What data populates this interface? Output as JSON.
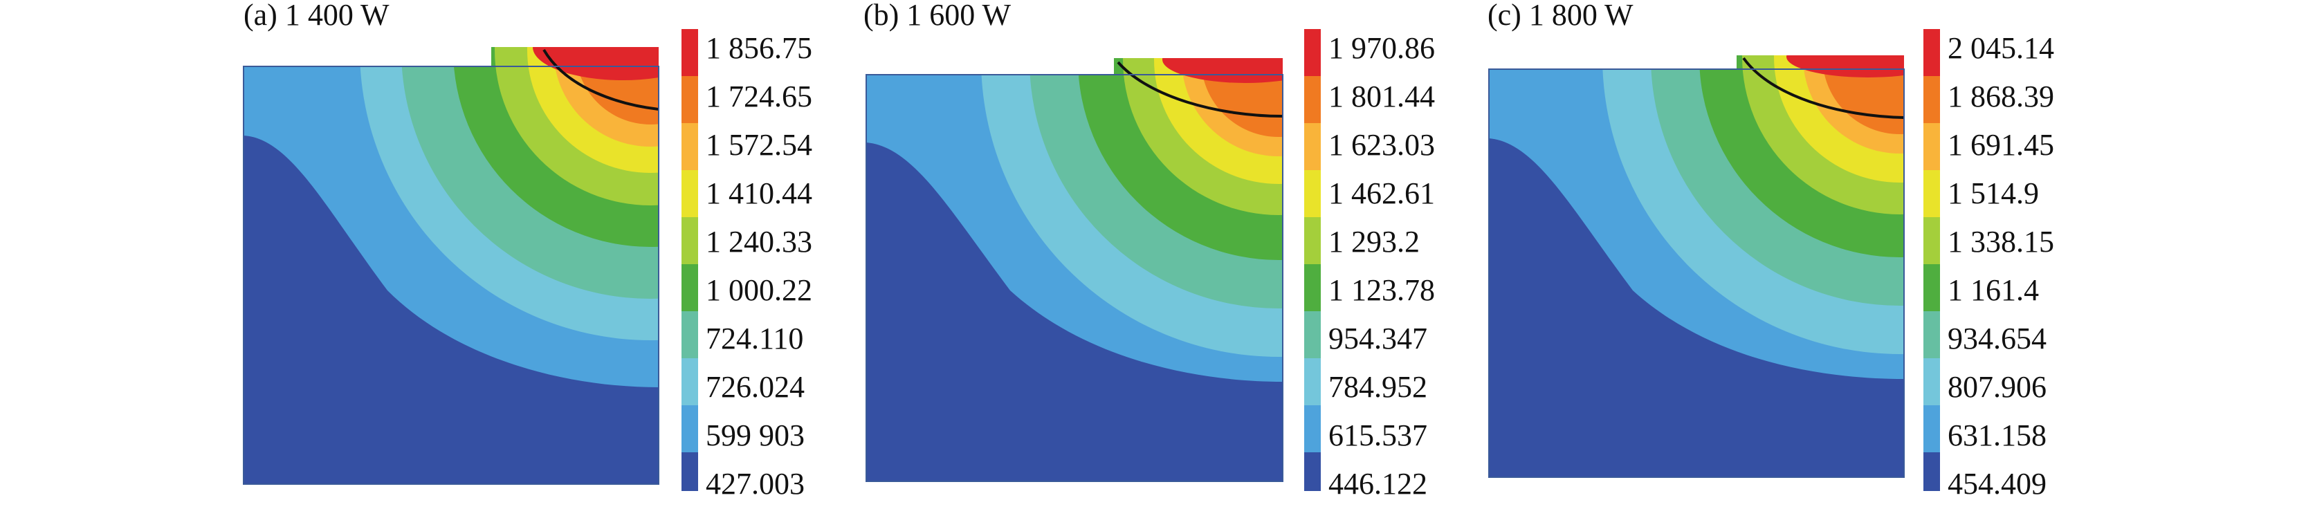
{
  "panels": [
    {
      "title": "(a) 1 400 W",
      "colorbar_labels": [
        "1 856.75",
        "1 724.65",
        "1 572.54",
        "1 410.44",
        "1 240.33",
        "1 000.22",
        "724.110",
        "726.024",
        "599 903",
        "427.003"
      ]
    },
    {
      "title": "(b) 1 600 W",
      "colorbar_labels": [
        "1 970.86",
        "1 801.44",
        "1 623.03",
        "1 462.61",
        "1 293.2",
        "1 123.78",
        "954.347",
        "784.952",
        "615.537",
        "446.122"
      ]
    },
    {
      "title": "(c) 1 800 W",
      "colorbar_labels": [
        "2 045.14",
        "1 868.39",
        "1 691.45",
        "1 514.9",
        "1 338.15",
        "1 161.4",
        "934.654",
        "807.906",
        "631.158",
        "454.409"
      ]
    }
  ],
  "colorbar_colors": [
    "#e0262b",
    "#f07a21",
    "#f9b43a",
    "#e9e32a",
    "#a4cf3b",
    "#4fae3f",
    "#66bfa2",
    "#74c6db",
    "#4ea3dc",
    "#3550a3"
  ]
}
